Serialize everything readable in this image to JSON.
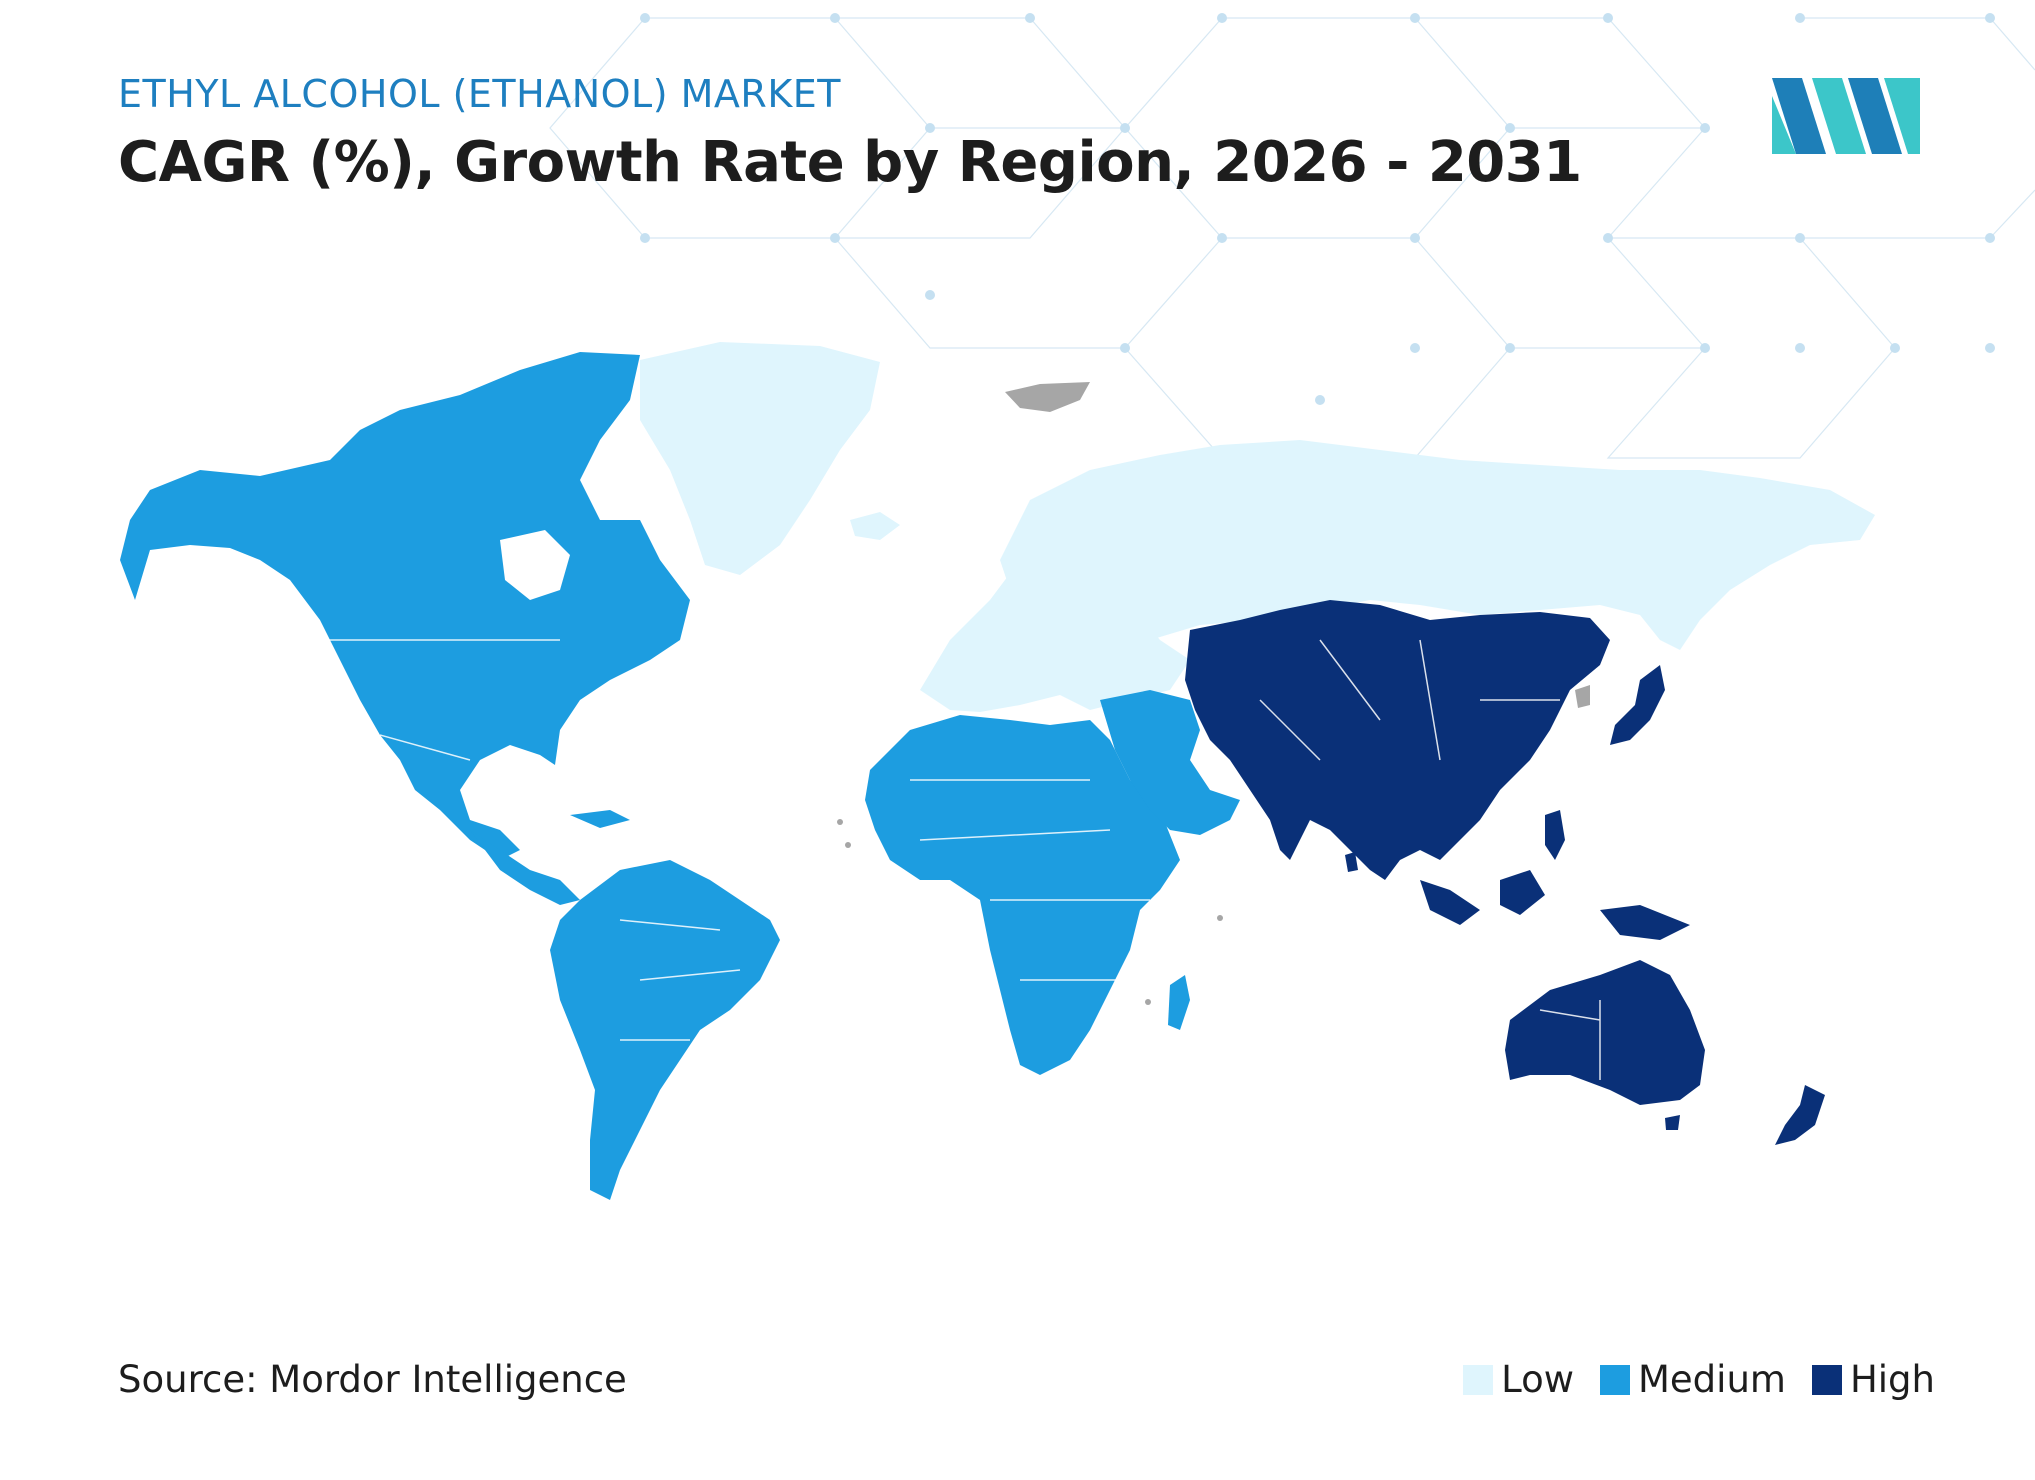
{
  "header": {
    "subtitle": "ETHYL ALCOHOL (ETHANOL) MARKET",
    "title": "CAGR (%), Growth Rate by Region, 2026 - 2031"
  },
  "source": "Source: Mordor Intelligence",
  "legend": [
    {
      "label": "Low",
      "color": "#dff5fd"
    },
    {
      "label": "Medium",
      "color": "#1d9de0"
    },
    {
      "label": "High",
      "color": "#0a3078"
    }
  ],
  "colors": {
    "no_data": "#a6a6a6",
    "pattern": "#bcd9ec",
    "logo_dark": "#1e7fb8",
    "logo_light": "#3cc6c9"
  },
  "regions": [
    {
      "name": "North America",
      "level": "Medium"
    },
    {
      "name": "South America",
      "level": "Medium"
    },
    {
      "name": "Europe",
      "level": "Low"
    },
    {
      "name": "Africa",
      "level": "Medium"
    },
    {
      "name": "Middle East",
      "level": "Medium"
    },
    {
      "name": "Asia-Pacific",
      "level": "High"
    }
  ]
}
